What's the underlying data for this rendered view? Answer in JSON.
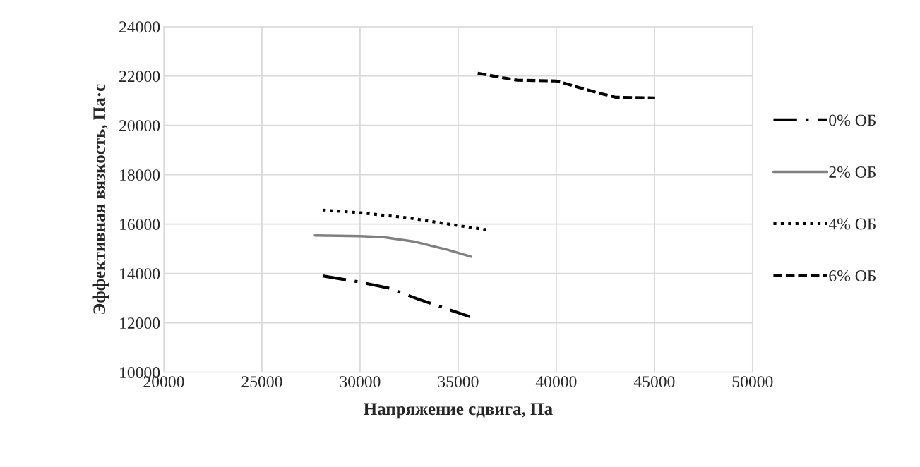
{
  "chart_data": {
    "type": "line",
    "xlabel": "Напряжение сдвига, Па",
    "ylabel": "Эффективная вязкость, Па·с",
    "xlim": [
      20000,
      50000
    ],
    "xticks": [
      20000,
      25000,
      30000,
      35000,
      40000,
      45000,
      50000
    ],
    "ylim": [
      10000,
      24000
    ],
    "yticks": [
      10000,
      12000,
      14000,
      16000,
      18000,
      20000,
      22000,
      24000
    ],
    "grid": true,
    "legend": "right",
    "marker": "none",
    "series": [
      {
        "name": "0% ОБ",
        "color": "#000000",
        "line_style": "dashdot",
        "x": [
          28100,
          30000,
          31500,
          33000,
          35600
        ],
        "values": [
          13900,
          13650,
          13400,
          12950,
          12250
        ]
      },
      {
        "name": "2% ОБ",
        "color": "#808080",
        "line_style": "solid",
        "x": [
          27700,
          30000,
          31200,
          32700,
          34500,
          35650
        ],
        "values": [
          15540,
          15510,
          15470,
          15300,
          14950,
          14680
        ]
      },
      {
        "name": "4% ОБ",
        "color": "#000000",
        "line_style": "dotted",
        "x": [
          28100,
          30000,
          32500,
          35000,
          36470
        ],
        "values": [
          16570,
          16460,
          16250,
          15940,
          15770
        ]
      },
      {
        "name": "6% ОБ",
        "color": "#000000",
        "line_style": "dashed",
        "x": [
          36000,
          38000,
          40000,
          42000,
          43000,
          45000
        ],
        "values": [
          22110,
          21830,
          21800,
          21340,
          21140,
          21110
        ]
      }
    ]
  }
}
